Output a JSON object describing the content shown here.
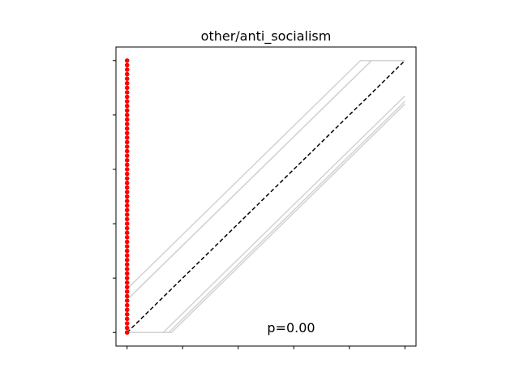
{
  "chart_data": {
    "type": "line",
    "title": "other/anti_socialism",
    "xlabel": "",
    "ylabel": "",
    "xlim": [
      -0.04,
      1.04
    ],
    "ylim": [
      -0.05,
      1.05
    ],
    "x_ticks": [
      0,
      0.2,
      0.4,
      0.6,
      0.8,
      1.0
    ],
    "y_ticks": [
      0,
      0.2,
      0.4,
      0.6,
      0.8,
      1.0
    ],
    "tick_labels_visible": false,
    "grid": false,
    "legend": "none",
    "annotation": "p=0.00",
    "series": [
      {
        "kind": "envelope",
        "color": "#d3d3d3",
        "x": [
          0,
          0.84,
          1.0
        ],
        "y": [
          0.16,
          1.0,
          1.0
        ]
      },
      {
        "kind": "envelope",
        "color": "#d3d3d3",
        "x": [
          0,
          0.88,
          1.0
        ],
        "y": [
          0.12,
          1.0,
          1.0
        ]
      },
      {
        "kind": "envelope",
        "color": "#d3d3d3",
        "x": [
          0,
          0.88,
          1.0
        ],
        "y": [
          0.12,
          1.0,
          1.0
        ]
      },
      {
        "kind": "envelope",
        "color": "#d3d3d3",
        "x": [
          0,
          0.13,
          1.0
        ],
        "y": [
          0,
          0,
          0.87
        ]
      },
      {
        "kind": "envelope",
        "color": "#d3d3d3",
        "x": [
          0,
          0.15,
          1.0
        ],
        "y": [
          0,
          0,
          0.85
        ]
      },
      {
        "kind": "envelope",
        "color": "#d3d3d3",
        "x": [
          0,
          0.16,
          1.0
        ],
        "y": [
          0,
          0,
          0.84
        ]
      },
      {
        "kind": "reference",
        "color": "#000000",
        "dashed": true,
        "x": [
          0,
          1
        ],
        "y": [
          0,
          1
        ]
      },
      {
        "kind": "observed",
        "color": "#ff0000",
        "x": [
          0,
          0,
          0,
          0,
          0,
          0,
          0,
          0,
          0,
          0,
          0,
          0,
          0,
          0,
          0,
          0,
          0,
          0,
          0,
          0,
          0,
          0,
          0,
          0,
          0,
          0,
          0,
          0,
          0,
          0,
          0,
          0,
          0,
          0,
          0,
          0,
          0,
          0,
          0,
          0,
          0,
          0,
          0,
          0,
          0,
          0,
          0,
          0,
          0,
          0,
          0,
          0,
          0,
          0,
          0,
          0,
          0,
          0,
          0,
          0,
          0
        ],
        "y": [
          0.0,
          0.0167,
          0.0333,
          0.05,
          0.0667,
          0.0833,
          0.1,
          0.1167,
          0.1333,
          0.15,
          0.1667,
          0.1833,
          0.2,
          0.2167,
          0.2333,
          0.25,
          0.2667,
          0.2833,
          0.3,
          0.3167,
          0.3333,
          0.35,
          0.3667,
          0.3833,
          0.4,
          0.4167,
          0.4333,
          0.45,
          0.4667,
          0.4833,
          0.5,
          0.5167,
          0.5333,
          0.55,
          0.5667,
          0.5833,
          0.6,
          0.6167,
          0.6333,
          0.65,
          0.6667,
          0.6833,
          0.7,
          0.7167,
          0.7333,
          0.75,
          0.7667,
          0.7833,
          0.8,
          0.8167,
          0.8333,
          0.85,
          0.8667,
          0.8833,
          0.9,
          0.9167,
          0.9333,
          0.95,
          0.9667,
          0.9833,
          1.0
        ]
      }
    ]
  }
}
